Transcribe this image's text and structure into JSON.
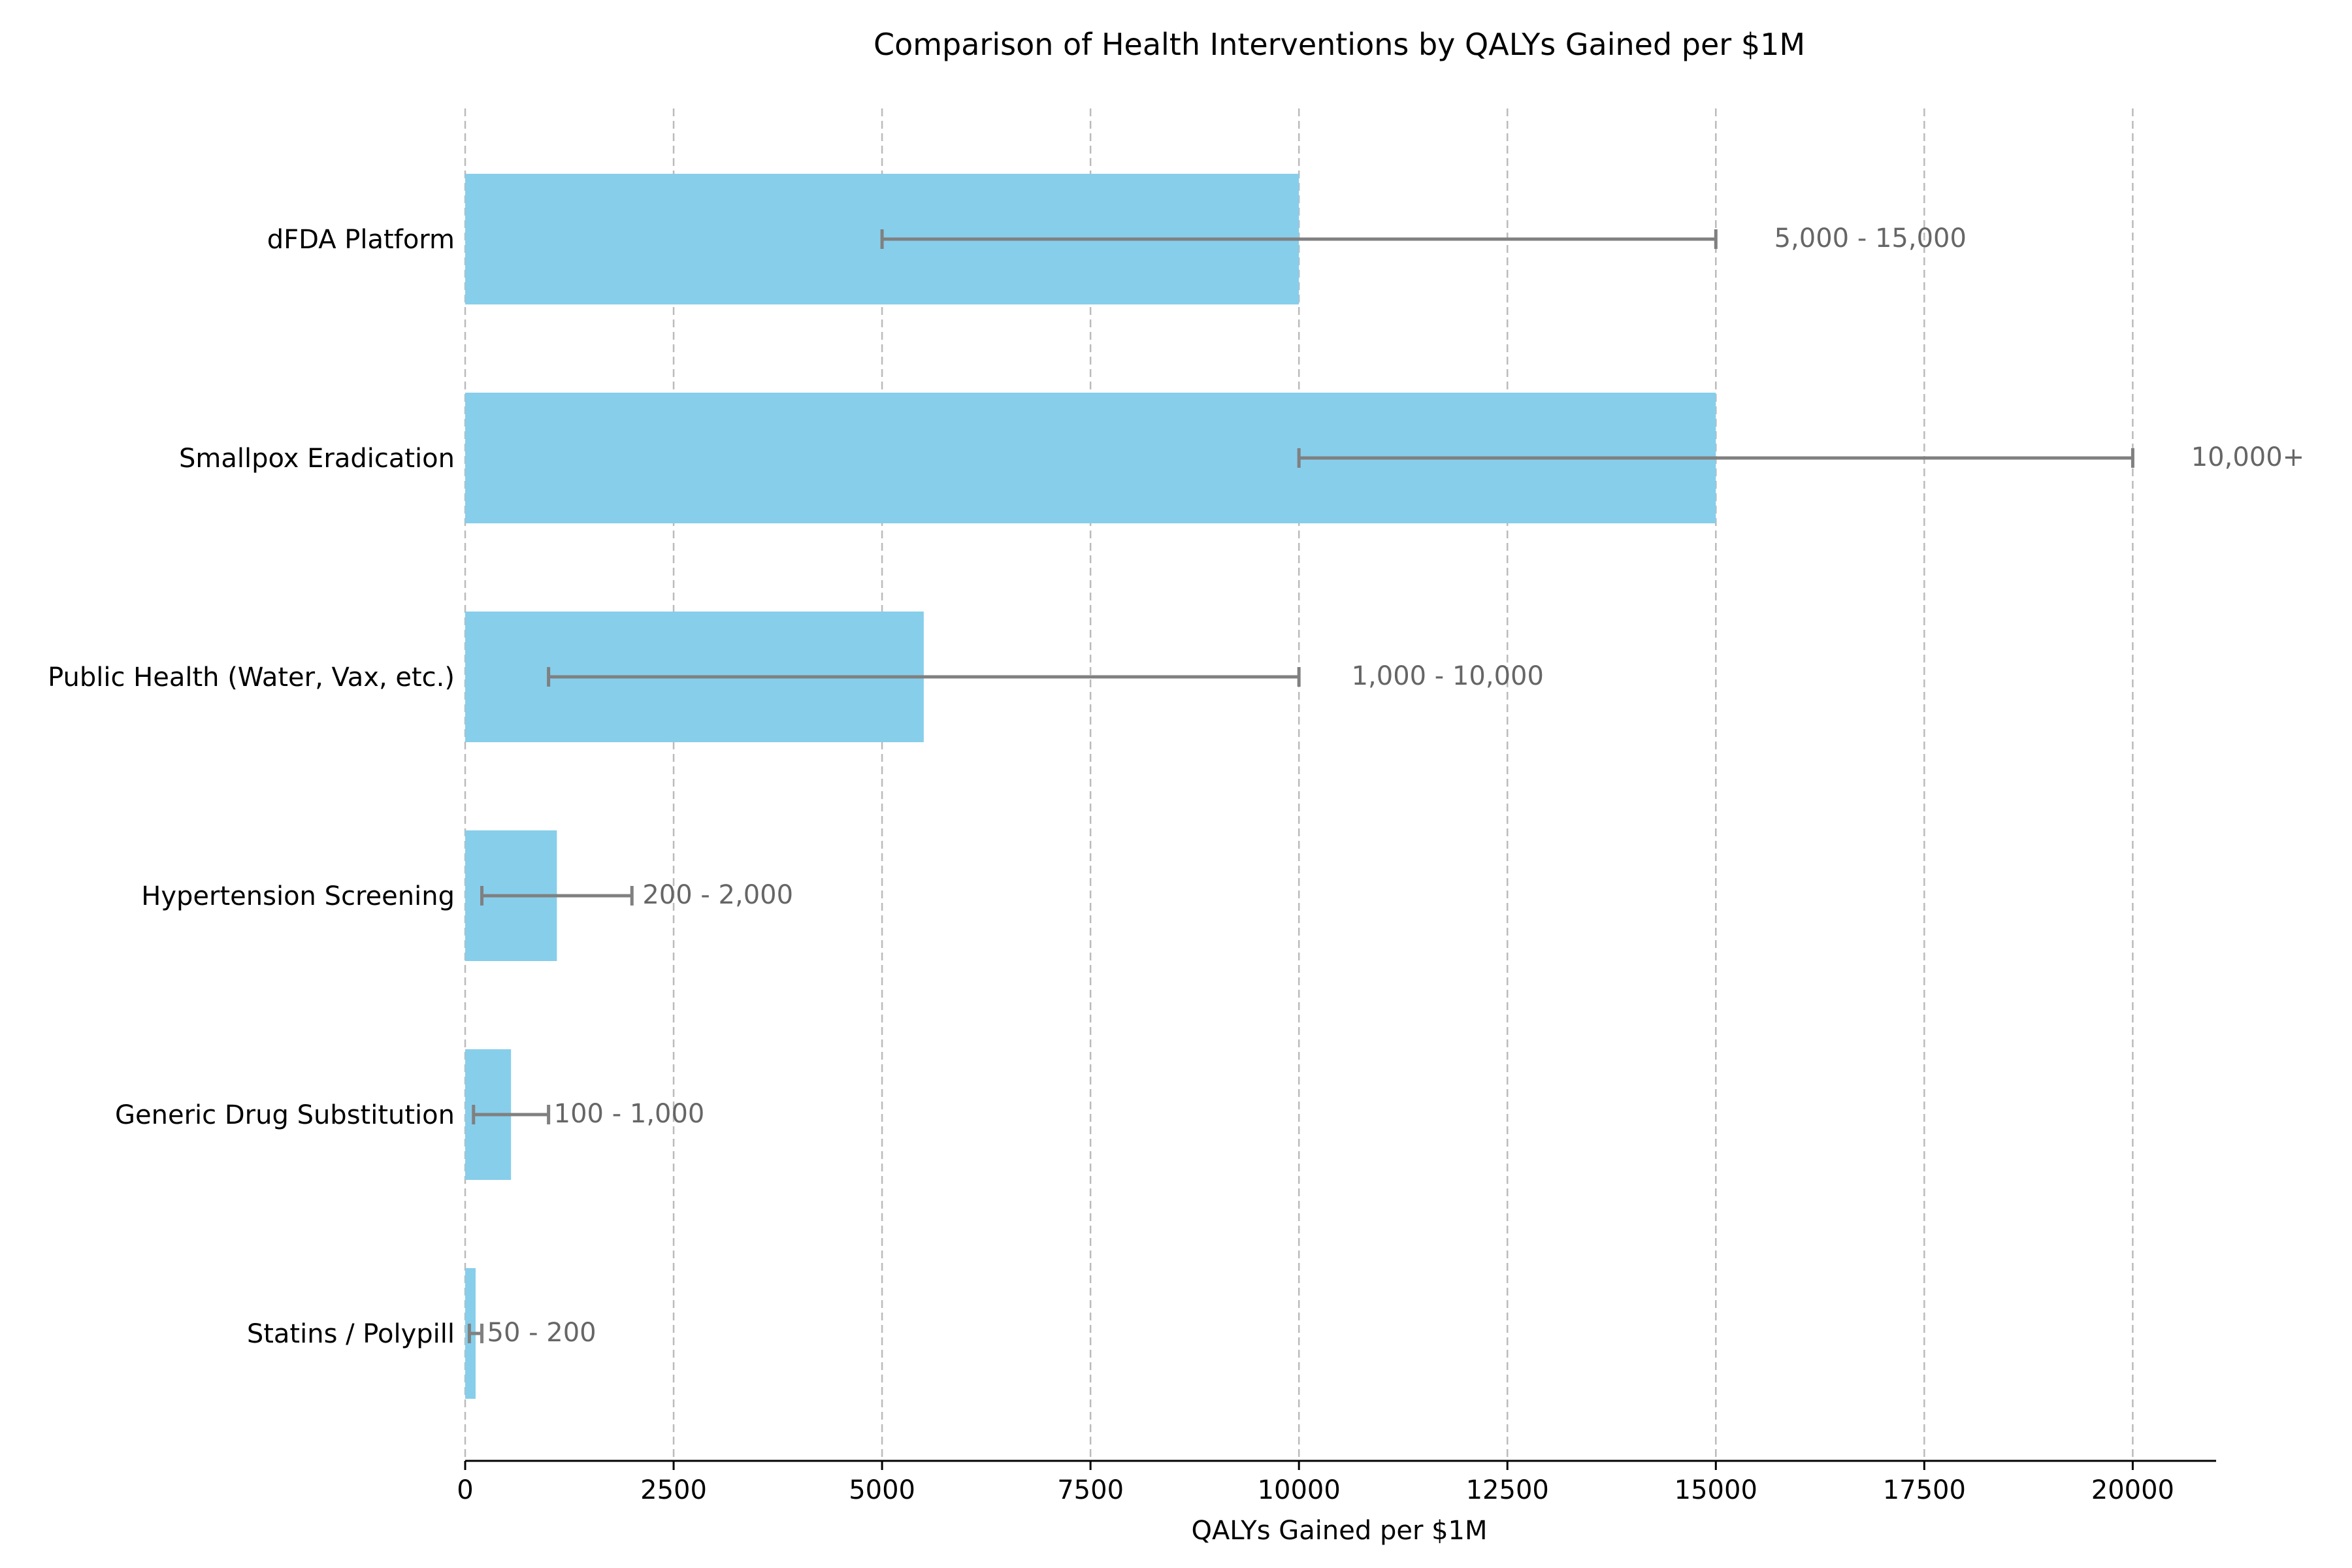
{
  "chart_data": {
    "type": "bar",
    "orientation": "horizontal",
    "title": "Comparison of Health Interventions by QALYs Gained per $1M",
    "xlabel": "QALYs Gained per $1M",
    "ylabel": "",
    "xlim": [
      0,
      21000
    ],
    "xticks": [
      0,
      2500,
      5000,
      7500,
      10000,
      12500,
      15000,
      17500,
      20000
    ],
    "grid": "x-dashed",
    "bar_color": "#87CEEB",
    "error_color": "#808080",
    "categories": [
      "dFDA Platform",
      "Smallpox Eradication",
      "Public Health (Water, Vax, etc.)",
      "Hypertension Screening",
      "Generic Drug Substitution",
      "Statins / Polypill"
    ],
    "values": [
      10000,
      15000,
      5500,
      1100,
      550,
      125
    ],
    "ranges": [
      [
        5000,
        15000
      ],
      [
        10000,
        20000
      ],
      [
        1000,
        10000
      ],
      [
        200,
        2000
      ],
      [
        100,
        1000
      ],
      [
        50,
        200
      ]
    ],
    "range_labels": [
      "5,000 - 15,000",
      "10,000+",
      "1,000 - 10,000",
      "200 - 2,000",
      "100 - 1,000",
      "50 - 200"
    ]
  }
}
